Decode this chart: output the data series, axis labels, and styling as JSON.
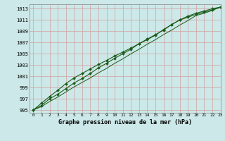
{
  "xlabel": "Graphe pression niveau de la mer (hPa)",
  "xlim": [
    -0.5,
    23
  ],
  "ylim": [
    994.5,
    1013.8
  ],
  "yticks": [
    995,
    997,
    999,
    1001,
    1003,
    1005,
    1007,
    1009,
    1011,
    1013
  ],
  "xticks": [
    0,
    1,
    2,
    3,
    4,
    5,
    6,
    7,
    8,
    9,
    10,
    11,
    12,
    13,
    14,
    15,
    16,
    17,
    18,
    19,
    20,
    21,
    22,
    23
  ],
  "bg_color": "#cce8e8",
  "grid_color": "#d4a0a0",
  "line_color": "#1a5c1a",
  "x": [
    0,
    1,
    2,
    3,
    4,
    5,
    6,
    7,
    8,
    9,
    10,
    11,
    12,
    13,
    14,
    15,
    16,
    17,
    18,
    19,
    20,
    21,
    22,
    23
  ],
  "y_line1": [
    995.0,
    995.6,
    996.5,
    997.3,
    998.2,
    999.1,
    999.9,
    1000.7,
    1001.6,
    1002.4,
    1003.3,
    1004.1,
    1005.0,
    1005.8,
    1006.7,
    1007.5,
    1008.4,
    1009.2,
    1010.1,
    1010.9,
    1011.8,
    1012.2,
    1012.7,
    1013.3
  ],
  "y_line2": [
    995.0,
    995.8,
    997.0,
    997.8,
    998.8,
    999.8,
    1000.6,
    1001.5,
    1002.5,
    1003.3,
    1004.2,
    1005.0,
    1005.8,
    1006.8,
    1007.5,
    1008.3,
    1009.3,
    1010.2,
    1011.0,
    1011.5,
    1012.0,
    1012.4,
    1012.8,
    1013.3
  ],
  "y_line3": [
    995.0,
    996.2,
    997.4,
    998.5,
    999.7,
    1000.7,
    1001.5,
    1002.3,
    1003.1,
    1003.8,
    1004.6,
    1005.3,
    1006.0,
    1006.8,
    1007.6,
    1008.4,
    1009.2,
    1010.2,
    1011.0,
    1011.7,
    1012.2,
    1012.6,
    1013.0,
    1013.3
  ]
}
